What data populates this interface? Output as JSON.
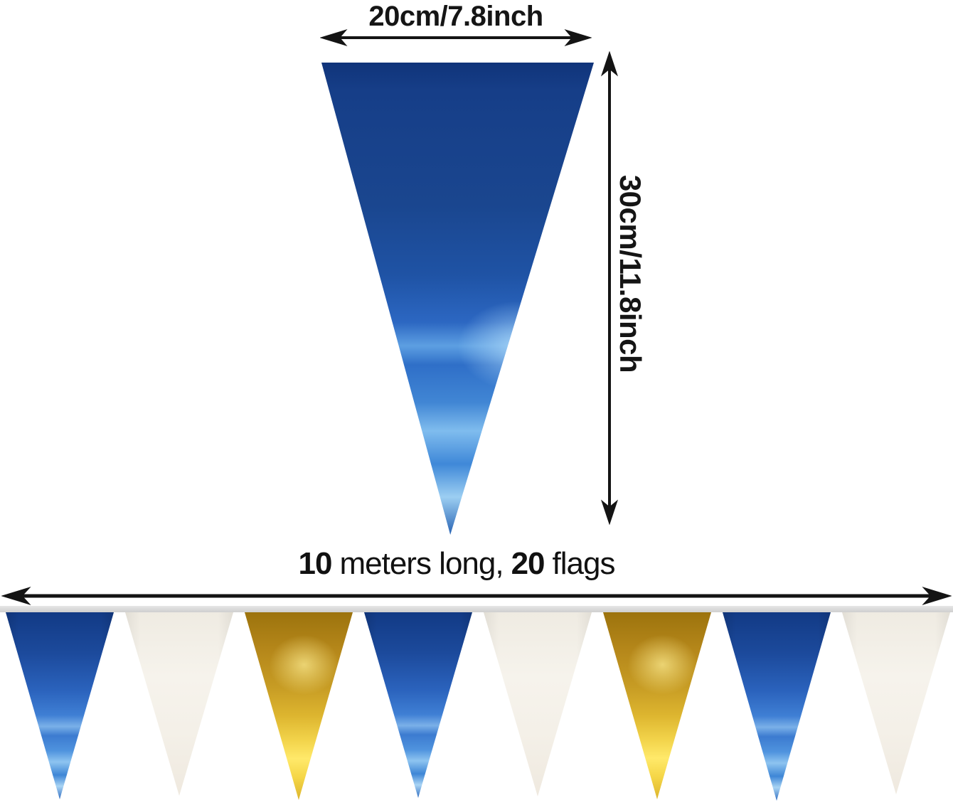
{
  "diagram": {
    "type": "product-size-diagram",
    "product": "triangle pennant banner flags"
  },
  "labels": {
    "width": "20cm/7.8inch",
    "height": "30cm/11.8inch",
    "length": {
      "num1": "10",
      "mid": "meters long,",
      "num2": "20",
      "end": "flags"
    }
  },
  "colors": {
    "background": "#ffffff",
    "text": "#151515",
    "arrow": "#141414",
    "ribbon": "#d9d9d9",
    "flag_blue_top": "#123a85",
    "flag_blue_bottom": "#2f6cc0",
    "flag_blue_streak": "#9ccef2",
    "flag_gold_top": "#9c730d",
    "flag_gold_bright": "#ffe96a",
    "flag_white": "#f5f1e9"
  },
  "banner": {
    "visible_flag_count": 8,
    "flag_colors": [
      "blue",
      "white",
      "gold",
      "blue",
      "white",
      "gold",
      "blue",
      "white"
    ]
  }
}
